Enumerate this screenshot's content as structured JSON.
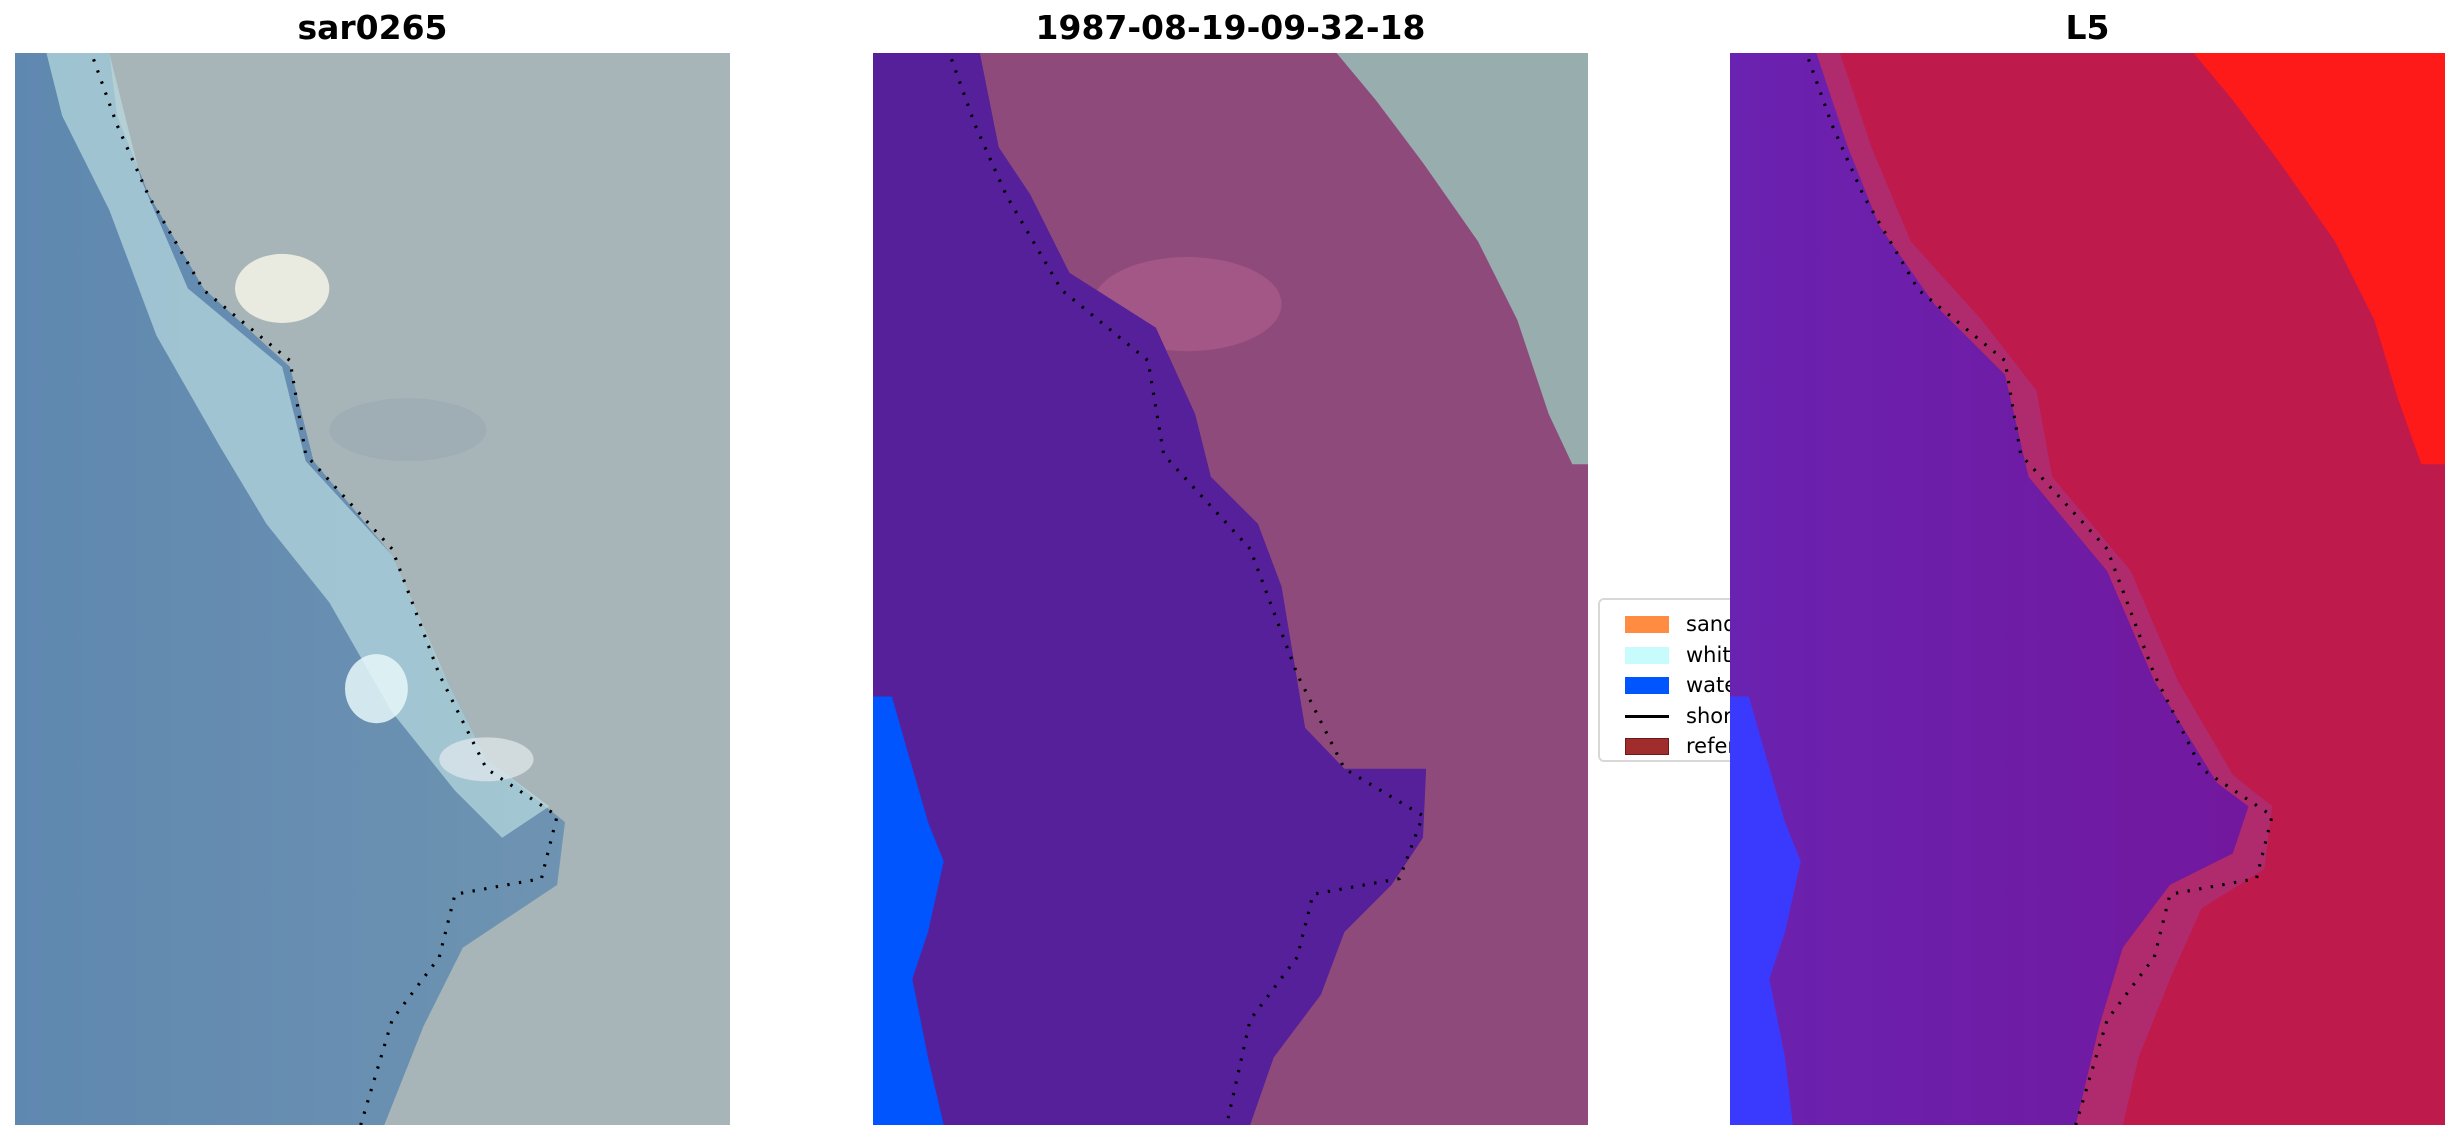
{
  "panels": [
    {
      "title": "sar0265"
    },
    {
      "title": "1987-08-19-09-32-18"
    },
    {
      "title": "L5"
    }
  ],
  "legend": {
    "items": [
      {
        "label": "sand",
        "color": "#ff8c40",
        "kind": "patch"
      },
      {
        "label": "whitew",
        "color": "#c8fcfc",
        "kind": "patch"
      },
      {
        "label": "water",
        "color": "#0055ff",
        "kind": "patch"
      },
      {
        "label": "shorel",
        "color": "#000000",
        "kind": "line"
      },
      {
        "label": "referer",
        "color": "#a02c2c",
        "kind": "patch"
      }
    ]
  },
  "colors": {
    "sea_rgb": "#6b93b8",
    "land_rgb": "#a9b7b9",
    "classified_water_proxy": "#55209a",
    "classified_land": "#8f4a7c",
    "classified_other": "#98aeae",
    "water": "#0055ff",
    "l5_water": "#6a1aa6",
    "l5_land": "#c0124a",
    "l5_high": "#ff1a1a",
    "l5_low": "#2a2aff"
  }
}
